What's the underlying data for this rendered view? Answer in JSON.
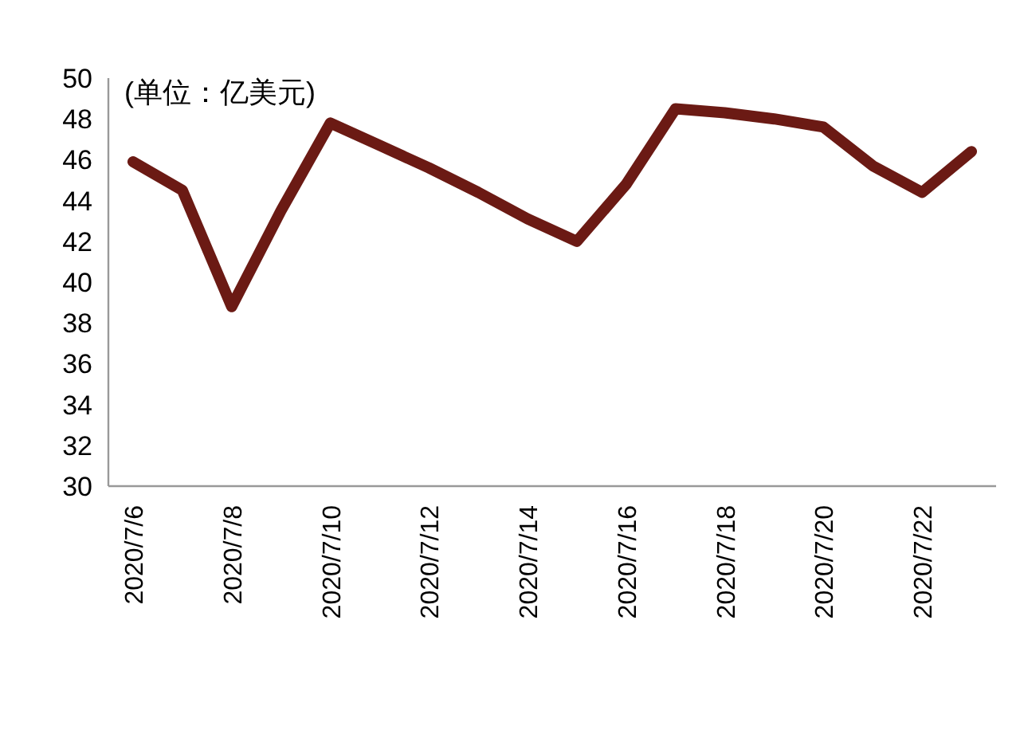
{
  "chart_data": {
    "type": "line",
    "ylabel": "(单位：亿美元)",
    "categories": [
      "2020/7/6",
      null,
      "2020/7/8",
      null,
      "2020/7/10",
      null,
      "2020/7/12",
      null,
      "2020/7/14",
      null,
      "2020/7/16",
      null,
      "2020/7/18",
      null,
      "2020/7/20",
      null,
      "2020/7/22",
      null
    ],
    "series": [
      {
        "color": "#6b1a14",
        "values": [
          45.9,
          44.5,
          38.8,
          43.5,
          47.8,
          46.7,
          45.6,
          44.4,
          43.1,
          42.0,
          44.8,
          48.5,
          48.3,
          48.0,
          47.6,
          45.7,
          44.4,
          46.4
        ]
      }
    ],
    "ylim": [
      30,
      50
    ],
    "yticks": [
      30,
      32,
      34,
      36,
      38,
      40,
      42,
      44,
      46,
      48,
      50
    ],
    "grid": false,
    "marker": "none",
    "line_style": "solid"
  }
}
